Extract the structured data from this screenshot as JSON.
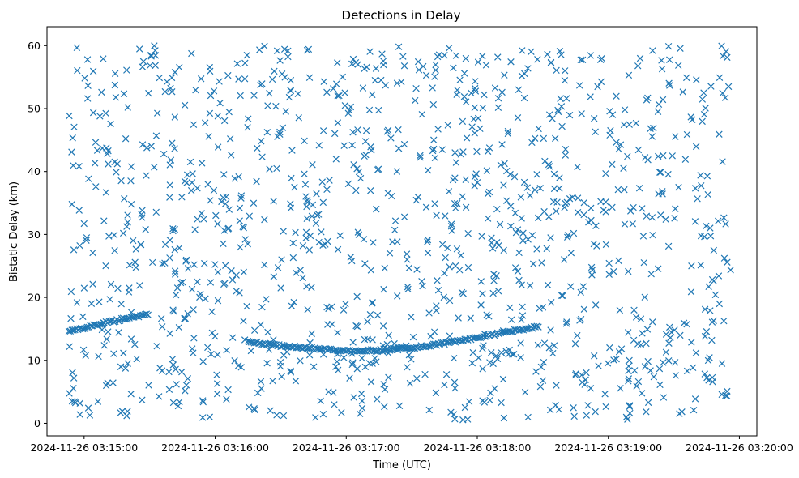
{
  "chart_data": {
    "type": "scatter",
    "title": "Detections in Delay",
    "xlabel": "Time (UTC)",
    "ylabel": "Bistatic Delay (km)",
    "marker": "x",
    "color": "#1f77b4",
    "grid": false,
    "x_ticks": [
      "2024-11-26 03:15:00",
      "2024-11-26 03:16:00",
      "2024-11-26 03:17:00",
      "2024-11-26 03:18:00",
      "2024-11-26 03:19:00",
      "2024-11-26 03:20:00"
    ],
    "x_range": [
      "2024-11-26 03:14:43",
      "2024-11-26 03:20:08"
    ],
    "y_ticks": [
      0,
      10,
      20,
      30,
      40,
      50,
      60
    ],
    "ylim": [
      -2,
      63
    ],
    "track": [
      {
        "t": "2024-11-26 03:14:53",
        "delay": 14.7
      },
      {
        "t": "2024-11-26 03:15:00",
        "delay": 15.2
      },
      {
        "t": "2024-11-26 03:15:10",
        "delay": 16.0
      },
      {
        "t": "2024-11-26 03:15:20",
        "delay": 16.7
      },
      {
        "t": "2024-11-26 03:15:30",
        "delay": 17.4
      },
      {
        "t": "2024-11-26 03:16:15",
        "delay": 13.0
      },
      {
        "t": "2024-11-26 03:16:30",
        "delay": 12.3
      },
      {
        "t": "2024-11-26 03:16:45",
        "delay": 11.9
      },
      {
        "t": "2024-11-26 03:17:00",
        "delay": 11.5
      },
      {
        "t": "2024-11-26 03:17:15",
        "delay": 11.6
      },
      {
        "t": "2024-11-26 03:17:30",
        "delay": 12.0
      },
      {
        "t": "2024-11-26 03:17:45",
        "delay": 12.7
      },
      {
        "t": "2024-11-26 03:18:00",
        "delay": 13.6
      },
      {
        "t": "2024-11-26 03:18:15",
        "delay": 14.6
      },
      {
        "t": "2024-11-26 03:18:28",
        "delay": 15.3
      }
    ],
    "clutter": {
      "count": 1200,
      "delay_range": [
        0.5,
        60
      ],
      "distribution": "uniform",
      "t_range": [
        "2024-11-26 03:14:53",
        "2024-11-26 03:19:56"
      ]
    }
  }
}
